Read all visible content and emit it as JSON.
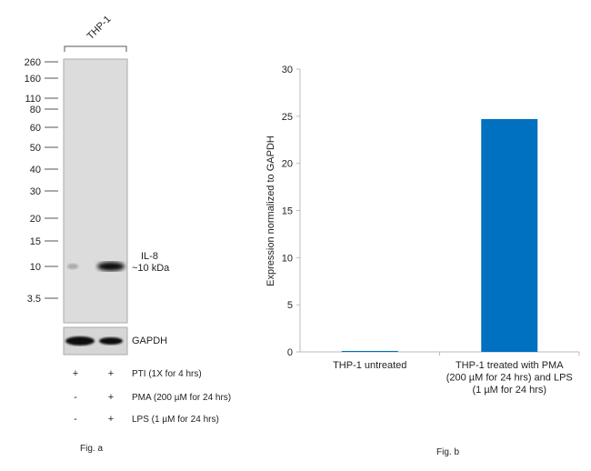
{
  "fig_a": {
    "lane_group_label": "THP-1",
    "markers": [
      "260",
      "160",
      "110",
      "80",
      "60",
      "50",
      "40",
      "30",
      "20",
      "15",
      "10",
      "3.5"
    ],
    "band_label_line1": "IL-8",
    "band_label_line2": "~10 kDa",
    "loading_control": "GAPDH",
    "treatments": [
      {
        "lane1": "+",
        "lane2": "+",
        "label": "PTI (1X for 4 hrs)"
      },
      {
        "lane1": "-",
        "lane2": "+",
        "label": "PMA (200 µM for 24 hrs)"
      },
      {
        "lane1": "-",
        "lane2": "+",
        "label": "LPS  (1 µM for 24 hrs)"
      }
    ],
    "caption": "Fig. a"
  },
  "chart_data": {
    "type": "bar",
    "categories": [
      "THP-1 untreated",
      "THP-1 treated with PMA (200 µM for 24 hrs) and LPS (1 µM for 24 hrs)"
    ],
    "category_lines": [
      [
        "THP-1 untreated"
      ],
      [
        "THP-1 treated with PMA",
        "(200 µM for 24 hrs) and LPS",
        "(1 µM for 24 hrs)"
      ]
    ],
    "values": [
      0.1,
      24.7
    ],
    "ylabel": "Expression  normalized to GAPDH",
    "xlabel": "",
    "ylim": [
      0,
      30
    ],
    "yticks": [
      "0",
      "5",
      "10",
      "15",
      "20",
      "25",
      "30"
    ],
    "grid": false,
    "bar_color": "#0070c0",
    "caption": "Fig. b"
  }
}
